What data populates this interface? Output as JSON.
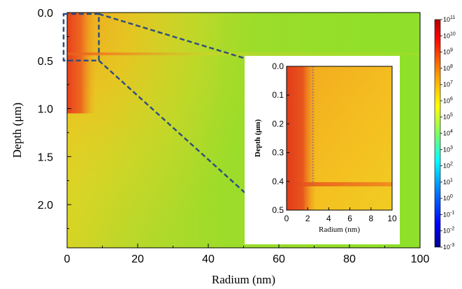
{
  "chart_data": [
    {
      "type": "heatmap",
      "role": "main",
      "xlabel": "Radium (nm)",
      "ylabel": "Depth (μm)",
      "xlim": [
        0,
        100
      ],
      "ylim": [
        0,
        2.45
      ],
      "y_inverted": true,
      "x_ticks": [
        0,
        20,
        40,
        60,
        80,
        100
      ],
      "y_ticks": [
        0.0,
        0.5,
        1.0,
        1.5,
        2.0
      ],
      "x_tick_labels": [
        "0",
        "20",
        "40",
        "60",
        "80",
        "100"
      ],
      "y_tick_labels": [
        "0.0",
        "0.5",
        "1.0",
        "1.5",
        "2.0"
      ],
      "features": {
        "bright_band_depth_um": 0.43,
        "hot_core_radius_nm": 8
      },
      "zoom_box": {
        "x": [
          0,
          9
        ],
        "y": [
          0.0,
          0.5
        ]
      }
    },
    {
      "type": "heatmap",
      "role": "inset",
      "xlabel": "Radium (nm)",
      "ylabel": "Depth (μm)",
      "xlim": [
        0,
        10
      ],
      "ylim": [
        0,
        0.5
      ],
      "y_inverted": true,
      "x_ticks": [
        0,
        2,
        4,
        6,
        8,
        10
      ],
      "y_ticks": [
        0.0,
        0.1,
        0.2,
        0.3,
        0.4,
        0.5
      ],
      "x_tick_labels": [
        "0",
        "2",
        "4",
        "6",
        "8",
        "10"
      ],
      "y_tick_labels": [
        "0.0",
        "0.1",
        "0.2",
        "0.3",
        "0.4",
        "0.5"
      ],
      "features": {
        "bright_band_depth_um": 0.41,
        "dotted_line_radius_nm": 2.5
      }
    }
  ],
  "colorbar": {
    "scale": "log",
    "range": [
      -3,
      11
    ],
    "tick_exponents": [
      11,
      10,
      9,
      8,
      7,
      6,
      5,
      4,
      3,
      2,
      1,
      0,
      -1,
      -2,
      -3
    ],
    "tick_base": "10"
  },
  "colors": {
    "background_green": "#8ee02a",
    "hot_red": "#e8401c",
    "warm_orange": "#f4a21c",
    "yellow": "#f2d21c",
    "zoom_dash": "#2f4f7f"
  }
}
